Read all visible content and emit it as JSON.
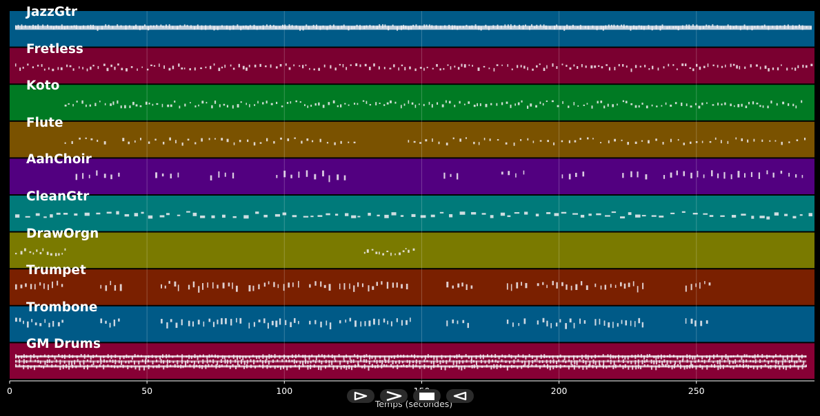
{
  "tracks": [
    {
      "name": "JazzGtr",
      "color": "#005a87",
      "density": 0.95,
      "segments": [
        [
          2,
          292
        ]
      ],
      "style": "block"
    },
    {
      "name": "Fretless",
      "color": "#7a0030",
      "density": 0.55,
      "segments": [
        [
          2,
          292
        ]
      ],
      "style": "dots"
    },
    {
      "name": "Koto",
      "color": "#007a23",
      "density": 0.55,
      "segments": [
        [
          20,
          290
        ]
      ],
      "style": "dots"
    },
    {
      "name": "Flute",
      "color": "#7a5200",
      "density": 0.3,
      "segments": [
        [
          20,
          35
        ],
        [
          41,
          127
        ],
        [
          145,
          290
        ]
      ],
      "style": "dots"
    },
    {
      "name": "AahChoir",
      "color": "#520080",
      "density": 0.18,
      "segments": [
        [
          24,
          40
        ],
        [
          53,
          62
        ],
        [
          73,
          83
        ],
        [
          97,
          122
        ],
        [
          158,
          165
        ],
        [
          179,
          189
        ],
        [
          201,
          210
        ],
        [
          223,
          232
        ],
        [
          238,
          290
        ]
      ],
      "style": "ticks"
    },
    {
      "name": "CleanGtr",
      "color": "#007a7a",
      "density": 0.45,
      "segments": [
        [
          2,
          292
        ]
      ],
      "style": "dash"
    },
    {
      "name": "DrawOrgn",
      "color": "#7a7a00",
      "density": 0.7,
      "segments": [
        [
          2,
          21
        ],
        [
          129,
          147
        ]
      ],
      "style": "dots"
    },
    {
      "name": "Trumpet",
      "color": "#7a2000",
      "density": 0.3,
      "segments": [
        [
          2,
          19
        ],
        [
          33,
          41
        ],
        [
          55,
          63
        ],
        [
          65,
          84
        ],
        [
          87,
          106
        ],
        [
          109,
          117
        ],
        [
          120,
          146
        ],
        [
          159,
          168
        ],
        [
          181,
          188
        ],
        [
          192,
          210
        ],
        [
          213,
          232
        ],
        [
          246,
          255
        ]
      ],
      "style": "ticks"
    },
    {
      "name": "Trombone",
      "color": "#005a87",
      "density": 0.3,
      "segments": [
        [
          2,
          19
        ],
        [
          33,
          41
        ],
        [
          55,
          63
        ],
        [
          65,
          84
        ],
        [
          87,
          106
        ],
        [
          109,
          117
        ],
        [
          120,
          146
        ],
        [
          159,
          168
        ],
        [
          181,
          188
        ],
        [
          192,
          210
        ],
        [
          213,
          232
        ],
        [
          246,
          255
        ]
      ],
      "style": "ticks"
    },
    {
      "name": "GM Drums",
      "color": "#870035",
      "density": 1.0,
      "segments": [
        [
          2,
          290
        ]
      ],
      "style": "drums"
    }
  ],
  "x_axis": {
    "label": "Temps (secondes)",
    "ticks": [
      0,
      50,
      100,
      150,
      200,
      250
    ],
    "tick_labels": [
      "0",
      "50",
      "100",
      "150",
      "200",
      "250"
    ],
    "range": [
      0,
      293
    ]
  },
  "controls": [
    {
      "name": "play-icon",
      "symbol": "play"
    },
    {
      "name": "fast-forward-icon",
      "symbol": "forward"
    },
    {
      "name": "stop-icon",
      "symbol": "stop"
    },
    {
      "name": "rewind-icon",
      "symbol": "back"
    }
  ]
}
